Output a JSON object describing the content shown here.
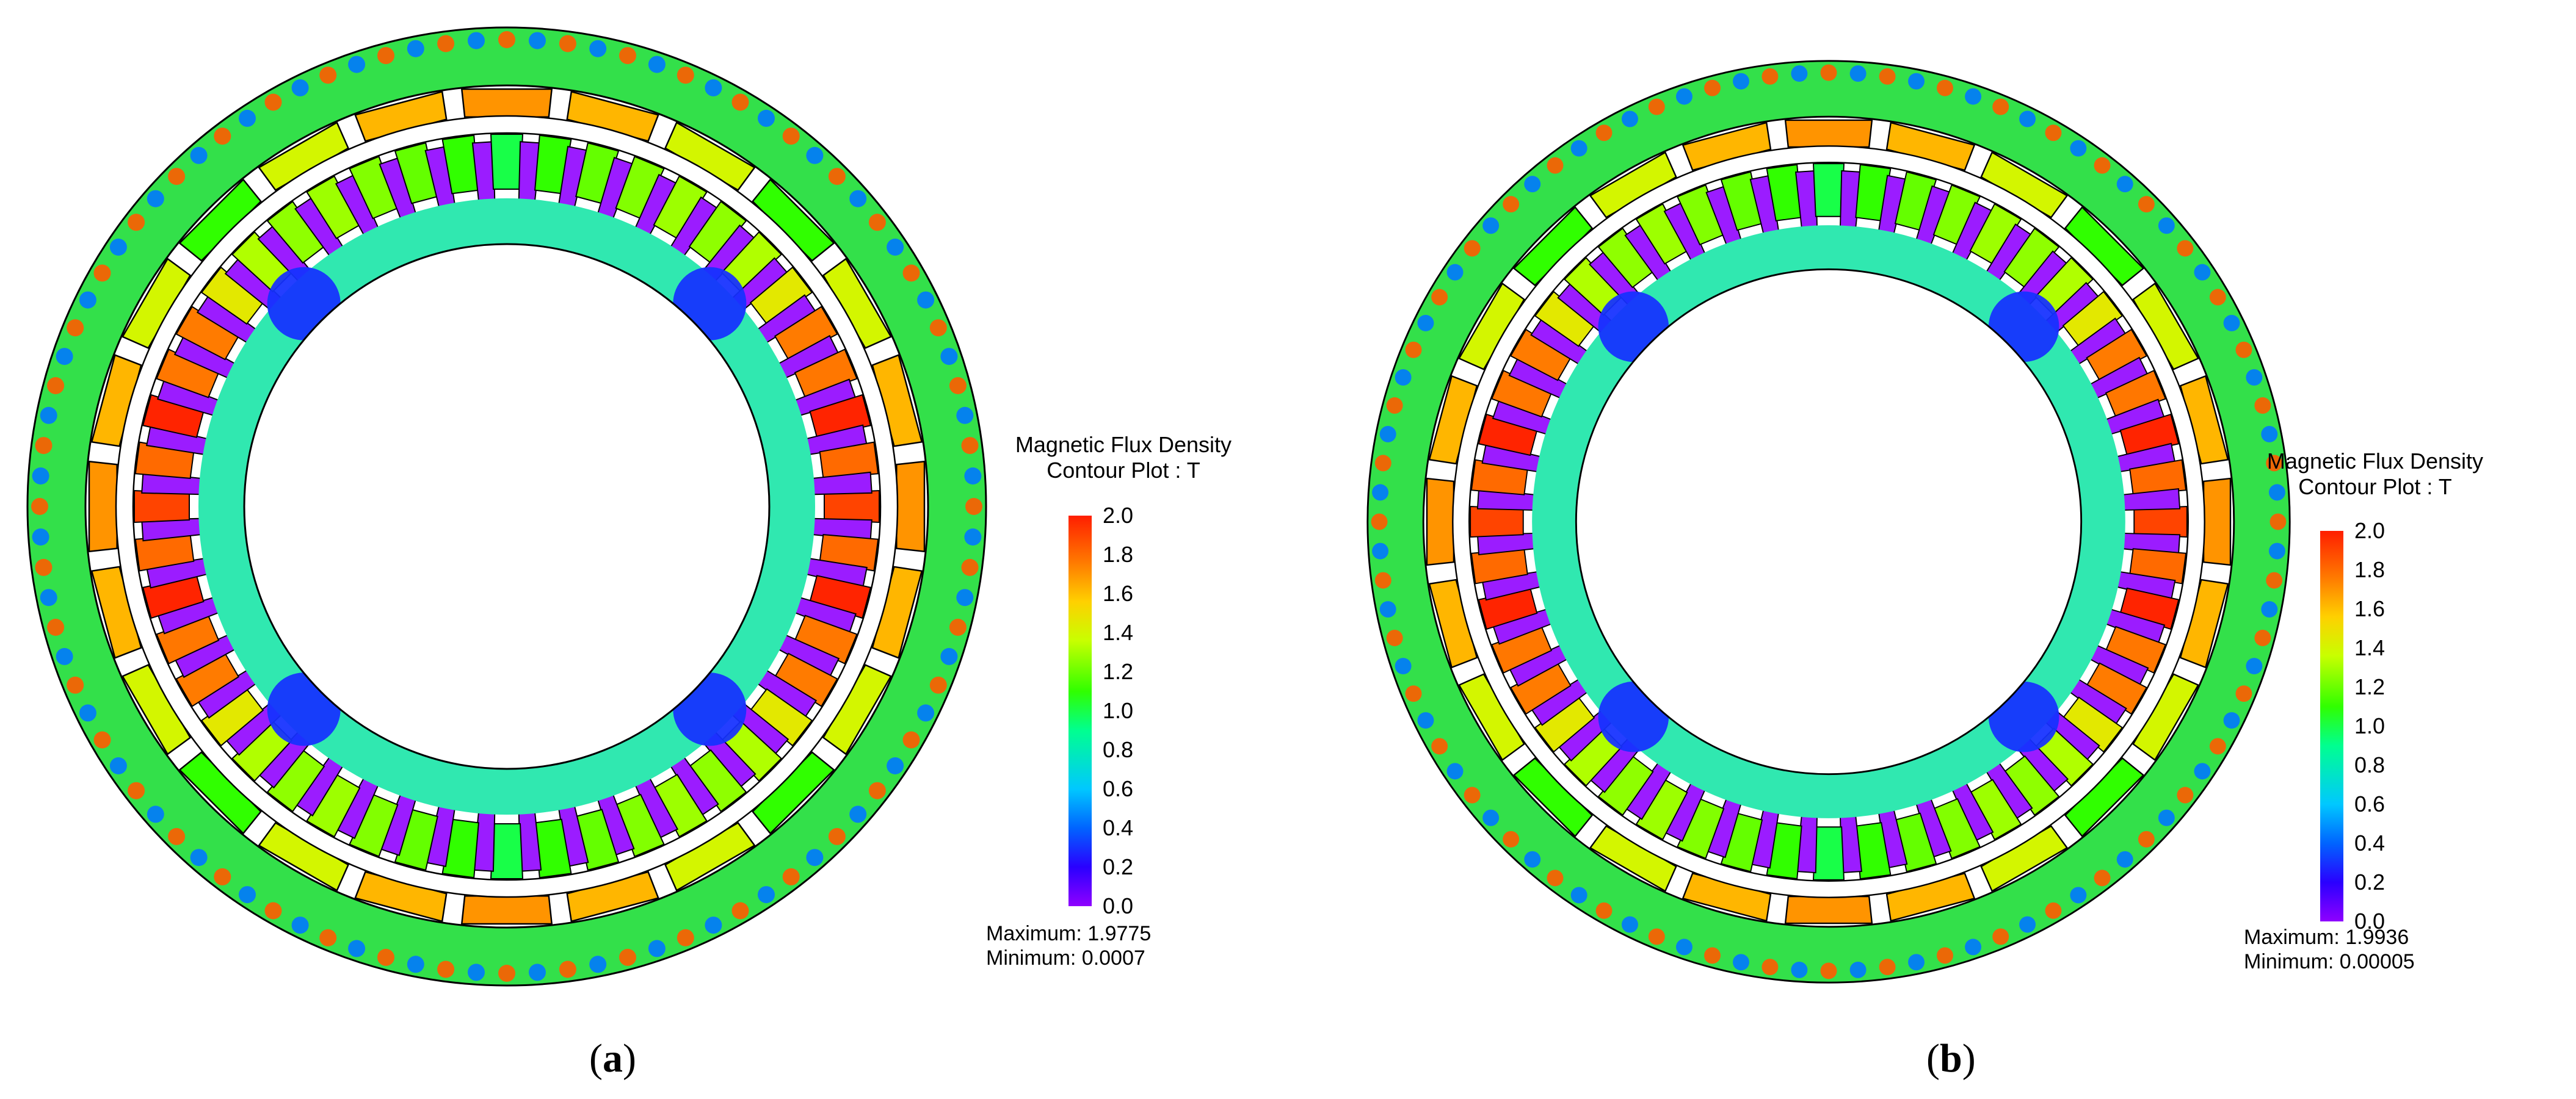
{
  "panels": [
    {
      "id": "a",
      "label": "a",
      "legend": {
        "title_line1": "Magnetic Flux Density",
        "title_line2": "Contour Plot : T",
        "ticks": [
          "2.0",
          "1.8",
          "1.6",
          "1.4",
          "1.2",
          "1.0",
          "0.8",
          "0.6",
          "0.4",
          "0.2",
          "0.0"
        ],
        "maximum": "Maximum: 1.9775",
        "minimum": "Minimum: 0.0007"
      },
      "stator_slots": 48,
      "rotor_poles": 24
    },
    {
      "id": "b",
      "label": "b",
      "legend": {
        "title_line1": "Magnetic Flux Density",
        "title_line2": "Contour Plot : T",
        "ticks": [
          "2.0",
          "1.8",
          "1.6",
          "1.4",
          "1.2",
          "1.0",
          "0.8",
          "0.6",
          "0.4",
          "0.2",
          "0.0"
        ],
        "maximum": "Maximum: 1.9936",
        "minimum": "Minimum: 0.00005"
      },
      "stator_slots": 48,
      "rotor_poles": 24
    }
  ],
  "colors": {
    "slot": "#9b1cff",
    "yoke_green": "#2fe24a",
    "low_blue": "#1f3cff",
    "high_orange": "#ff8a00",
    "high_red": "#ff2a00"
  }
}
